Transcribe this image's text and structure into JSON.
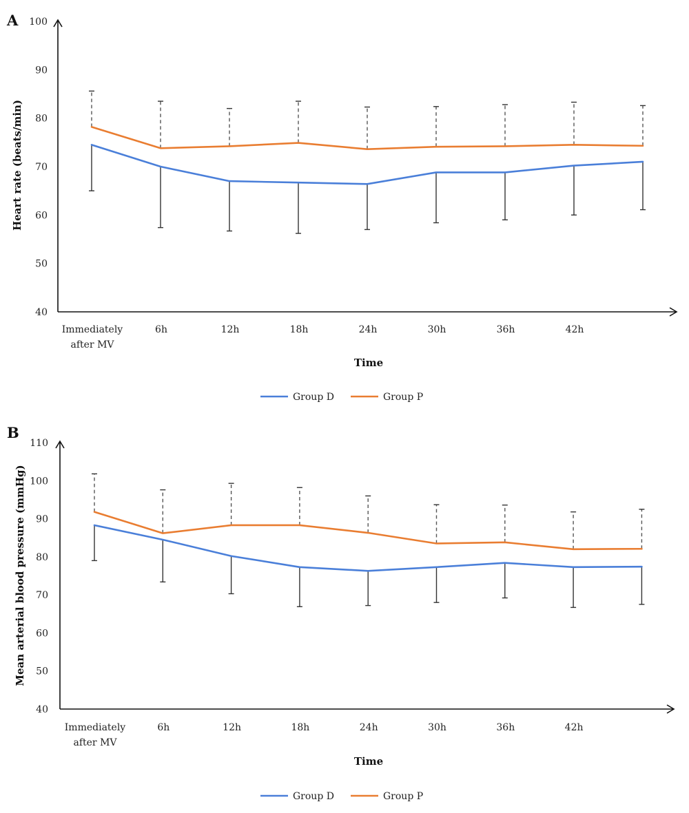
{
  "chart_data": [
    {
      "panel": "A",
      "type": "line",
      "categories": [
        "Immediately after MV",
        "6h",
        "12h",
        "18h",
        "24h",
        "30h",
        "36h",
        "42h",
        ""
      ],
      "category_lines": [
        [
          "Immediately",
          "after MV"
        ],
        [
          "6h"
        ],
        [
          "12h"
        ],
        [
          "18h"
        ],
        [
          "24h"
        ],
        [
          "30h"
        ],
        [
          "36h"
        ],
        [
          "42h"
        ],
        []
      ],
      "xlabel": "Time",
      "ylabel": "Heart rate (beats/min)",
      "ylim": [
        40,
        100
      ],
      "yticks": [
        40,
        50,
        60,
        70,
        80,
        90,
        100
      ],
      "grid": false,
      "legend": "bottom-center",
      "series": [
        {
          "name": "Group D",
          "color": "#4a7fd9",
          "values": [
            74.5,
            70.0,
            67.0,
            66.7,
            66.4,
            68.8,
            68.8,
            70.2,
            71.0
          ],
          "error_bar": "down",
          "error_style": "solid",
          "error_ends": [
            65.0,
            57.4,
            56.7,
            56.2,
            57.0,
            58.4,
            59.0,
            60.0,
            61.1
          ]
        },
        {
          "name": "Group P",
          "color": "#e97d31",
          "values": [
            78.2,
            73.8,
            74.2,
            74.9,
            73.6,
            74.1,
            74.2,
            74.5,
            74.3
          ],
          "error_bar": "up",
          "error_style": "dashed",
          "error_ends": [
            85.6,
            83.5,
            82.0,
            83.5,
            82.3,
            82.4,
            82.8,
            83.3,
            82.6
          ]
        }
      ]
    },
    {
      "panel": "B",
      "type": "line",
      "categories": [
        "Immediately after MV",
        "6h",
        "12h",
        "18h",
        "24h",
        "30h",
        "36h",
        "42h",
        ""
      ],
      "category_lines": [
        [
          "Immediately",
          "after MV"
        ],
        [
          "6h"
        ],
        [
          "12h"
        ],
        [
          "18h"
        ],
        [
          "24h"
        ],
        [
          "30h"
        ],
        [
          "36h"
        ],
        [
          "42h"
        ],
        []
      ],
      "xlabel": "Time",
      "ylabel": "Mean arterial blood pressure (mmHg)",
      "ylim": [
        40,
        110
      ],
      "yticks": [
        40,
        50,
        60,
        70,
        80,
        90,
        100,
        110
      ],
      "grid": false,
      "legend": "bottom-center",
      "series": [
        {
          "name": "Group D",
          "color": "#4a7fd9",
          "values": [
            88.3,
            84.5,
            80.2,
            77.3,
            76.3,
            77.3,
            78.4,
            77.3,
            77.4
          ],
          "error_bar": "down",
          "error_style": "solid",
          "error_ends": [
            79.0,
            73.4,
            70.3,
            66.9,
            67.2,
            68.0,
            69.2,
            66.7,
            67.5
          ]
        },
        {
          "name": "Group P",
          "color": "#e97d31",
          "values": [
            91.8,
            86.2,
            88.3,
            88.3,
            86.3,
            83.5,
            83.8,
            82.0,
            82.1
          ],
          "error_bar": "up",
          "error_style": "dashed",
          "error_ends": [
            101.8,
            97.6,
            99.3,
            98.2,
            96.0,
            93.7,
            93.6,
            91.8,
            92.5
          ]
        }
      ]
    }
  ]
}
